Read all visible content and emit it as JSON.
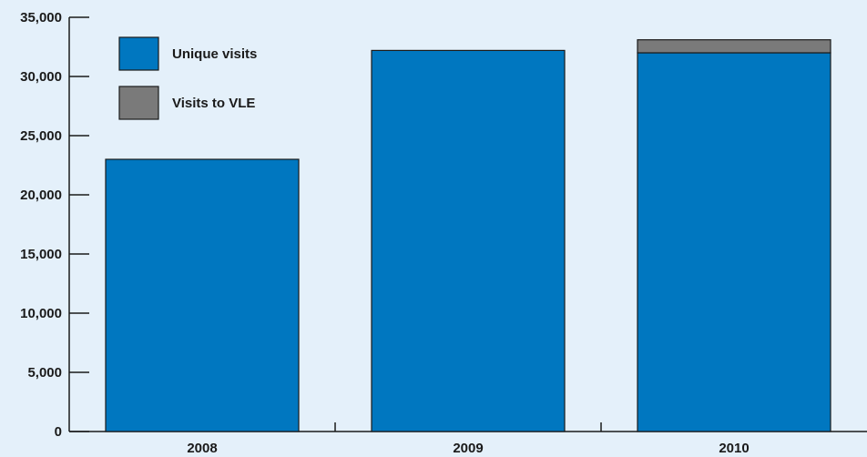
{
  "chart_data": {
    "type": "bar",
    "stacked": true,
    "categories": [
      "2008",
      "2009",
      "2010"
    ],
    "series": [
      {
        "name": "Unique visits",
        "values": [
          23000,
          32200,
          32000
        ],
        "color": "#0077c0"
      },
      {
        "name": "Visits to VLE",
        "values": [
          0,
          0,
          1100
        ],
        "color": "#7a7a7a"
      }
    ],
    "title": "",
    "xlabel": "",
    "ylabel": "",
    "ylim": [
      0,
      35000
    ],
    "yticks": [
      0,
      5000,
      10000,
      15000,
      20000,
      25000,
      30000,
      35000
    ],
    "ytick_labels": [
      "0",
      "5,000",
      "10,000",
      "15,000",
      "20,000",
      "25,000",
      "30,000",
      "35,000"
    ],
    "grid": false,
    "legend_position": "top-left",
    "colors": {
      "background": "#e4f0fa",
      "axis": "#1a1a1a",
      "bar_outline": "#1a1a1a"
    }
  }
}
